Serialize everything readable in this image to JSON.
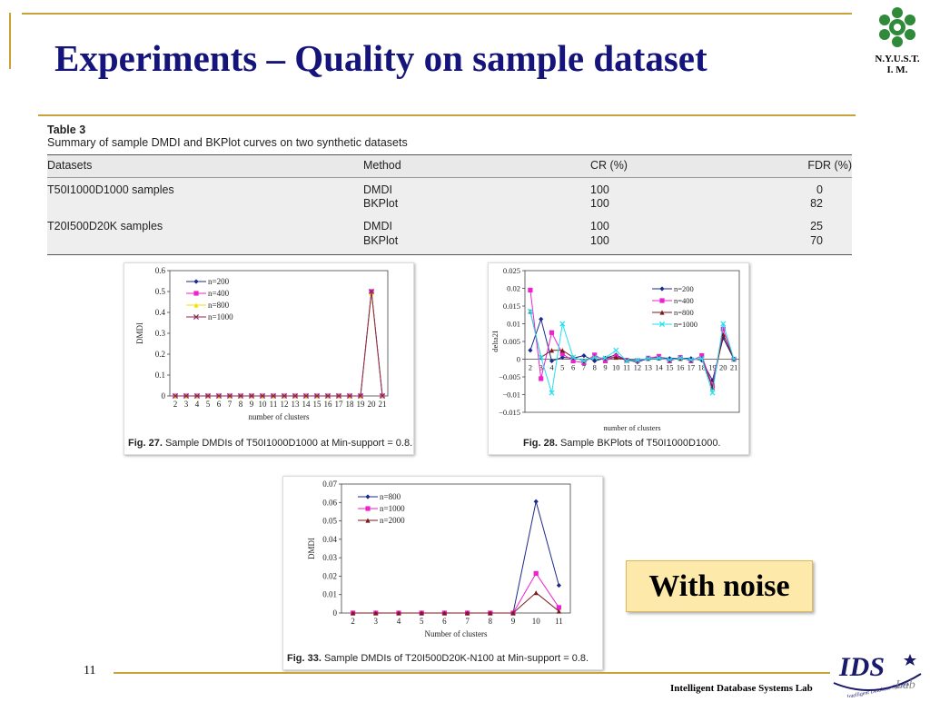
{
  "slide": {
    "title": "Experiments – Quality on sample dataset",
    "page_number": "11",
    "footer": "Intelligent Database Systems Lab",
    "noise_label": "With noise",
    "logo_text_line1": "N.Y.U.S.T.",
    "logo_text_line2": "I. M.",
    "ids_logo_text": "IDS",
    "ids_logo_sub": "Lab",
    "ids_logo_curve": "Intelligent Database Systems"
  },
  "table": {
    "caption": "Table 3",
    "subtitle": "Summary of sample DMDI and BKPlot curves on two synthetic datasets",
    "headers": [
      "Datasets",
      "Method",
      "CR (%)",
      "FDR (%)"
    ],
    "rows": [
      {
        "dataset": "T50I1000D1000 samples",
        "methods": [
          "DMDI",
          "BKPlot"
        ],
        "cr": [
          "100",
          "100"
        ],
        "fdr": [
          "0",
          "82"
        ]
      },
      {
        "dataset": "T20I500D20K samples",
        "methods": [
          "DMDI",
          "BKPlot"
        ],
        "cr": [
          "100",
          "100"
        ],
        "fdr": [
          "25",
          "70"
        ]
      }
    ]
  },
  "figures": {
    "fig27_label": "Fig. 27.",
    "fig27_caption": "Sample DMDIs of T50I1000D1000 at Min-support = 0.8.",
    "fig28_label": "Fig. 28.",
    "fig28_caption": "Sample BKPlots of T50I1000D1000.",
    "fig33_label": "Fig. 33.",
    "fig33_caption": "Sample DMDIs of T20I500D20K-N100 at Min-support = 0.8."
  },
  "chart_data": [
    {
      "type": "line",
      "ylabel": "DMDI",
      "xlabel": "number of clusters",
      "x": [
        2,
        3,
        4,
        5,
        6,
        7,
        8,
        9,
        10,
        11,
        12,
        13,
        14,
        15,
        16,
        17,
        18,
        19,
        20,
        21
      ],
      "ylim": [
        0,
        0.6
      ],
      "yticks": [
        "0",
        "0.1",
        "0.2",
        "0.3",
        "0.4",
        "0.5",
        "0.6"
      ],
      "legend_position": "top-left",
      "series": [
        {
          "name": "n=200",
          "color": "#1a2a8a",
          "marker": "diamond",
          "values": [
            0,
            0,
            0,
            0,
            0,
            0,
            0,
            0,
            0,
            0,
            0,
            0,
            0,
            0,
            0,
            0,
            0,
            0,
            0.5,
            0
          ]
        },
        {
          "name": "n=400",
          "color": "#ee22cc",
          "marker": "square",
          "values": [
            0,
            0,
            0,
            0,
            0,
            0,
            0,
            0,
            0,
            0,
            0,
            0,
            0,
            0,
            0,
            0,
            0,
            0,
            0.5,
            0
          ]
        },
        {
          "name": "n=800",
          "color": "#f2e200",
          "marker": "triangle",
          "values": [
            0,
            0,
            0,
            0,
            0,
            0,
            0,
            0,
            0,
            0,
            0,
            0,
            0,
            0,
            0,
            0,
            0,
            0,
            0.49,
            0
          ]
        },
        {
          "name": "n=1000",
          "color": "#8a2a5a",
          "marker": "x",
          "values": [
            0,
            0,
            0,
            0,
            0,
            0,
            0,
            0,
            0,
            0,
            0,
            0,
            0,
            0,
            0,
            0,
            0,
            0,
            0.5,
            0
          ]
        }
      ]
    },
    {
      "type": "line",
      "ylabel": "delta2I",
      "xlabel": "number of clusters",
      "x": [
        2,
        3,
        4,
        5,
        6,
        7,
        8,
        9,
        10,
        11,
        12,
        13,
        14,
        15,
        16,
        17,
        18,
        19,
        20,
        21
      ],
      "ylim": [
        -0.015,
        0.025
      ],
      "yticks": [
        "−0.015",
        "−0.01",
        "−0.005",
        "0",
        "0.005",
        "0.01",
        "0.015",
        "0.02",
        "0.025"
      ],
      "legend_position": "top-right",
      "series": [
        {
          "name": "n=200",
          "color": "#1a2a8a",
          "marker": "diamond",
          "values": [
            0.0025,
            0.0113,
            -0.0005,
            0.0005,
            0.0003,
            0.001,
            -0.0005,
            0.0003,
            0.0012,
            -0.0003,
            -0.0008,
            0.0002,
            0.0005,
            0.0002,
            0.0003,
            0.0002,
            -0.0003,
            -0.006,
            0.006,
            0
          ]
        },
        {
          "name": "n=400",
          "color": "#ee22cc",
          "marker": "square",
          "values": [
            0.0195,
            -0.0055,
            0.0075,
            0.0015,
            -0.0005,
            -0.001,
            0.0012,
            -0.0005,
            0.0008,
            -0.0003,
            -0.0005,
            0.0003,
            0.0008,
            -0.0005,
            0.0005,
            -0.0005,
            0.001,
            -0.0075,
            0.0085,
            0
          ]
        },
        {
          "name": "n=800",
          "color": "#7a1a1a",
          "marker": "triangle",
          "values": [
            0.0135,
            0.0005,
            0.0025,
            0.0025,
            0.0005,
            -0.0005,
            0.0005,
            0.0003,
            0.0005,
            -0.0003,
            -0.0003,
            0.0002,
            0.0003,
            -0.0002,
            0.0002,
            -0.0002,
            0.0002,
            -0.008,
            0.007,
            0
          ]
        },
        {
          "name": "n=1000",
          "color": "#22e0f0",
          "marker": "x",
          "values": [
            0.0135,
            0.0005,
            -0.0095,
            0.01,
            0.0005,
            -0.0005,
            0.0005,
            0.0003,
            0.0025,
            -0.0005,
            -0.0003,
            0.0002,
            0.0003,
            -0.0002,
            0.0003,
            -0.0002,
            0.0002,
            -0.0095,
            0.01,
            0
          ]
        }
      ]
    },
    {
      "type": "line",
      "ylabel": "DMDI",
      "xlabel": "Number of clusters",
      "x": [
        2,
        3,
        4,
        5,
        6,
        7,
        8,
        9,
        10,
        11
      ],
      "ylim": [
        0,
        0.07
      ],
      "yticks": [
        "0",
        "0.01",
        "0.02",
        "0.03",
        "0.04",
        "0.05",
        "0.06",
        "0.07"
      ],
      "legend_position": "top-left",
      "series": [
        {
          "name": "n=800",
          "color": "#1a2a8a",
          "marker": "diamond",
          "values": [
            0,
            0,
            0,
            0,
            0,
            0,
            0,
            0,
            0.0605,
            0.015
          ]
        },
        {
          "name": "n=1000",
          "color": "#ee22cc",
          "marker": "square",
          "values": [
            0,
            0,
            0,
            0,
            0,
            0,
            0,
            0,
            0.0215,
            0.003
          ]
        },
        {
          "name": "n=2000",
          "color": "#7a1a1a",
          "marker": "triangle",
          "values": [
            0,
            0,
            0,
            0,
            0,
            0,
            0,
            0,
            0.011,
            0.001
          ]
        }
      ]
    }
  ]
}
